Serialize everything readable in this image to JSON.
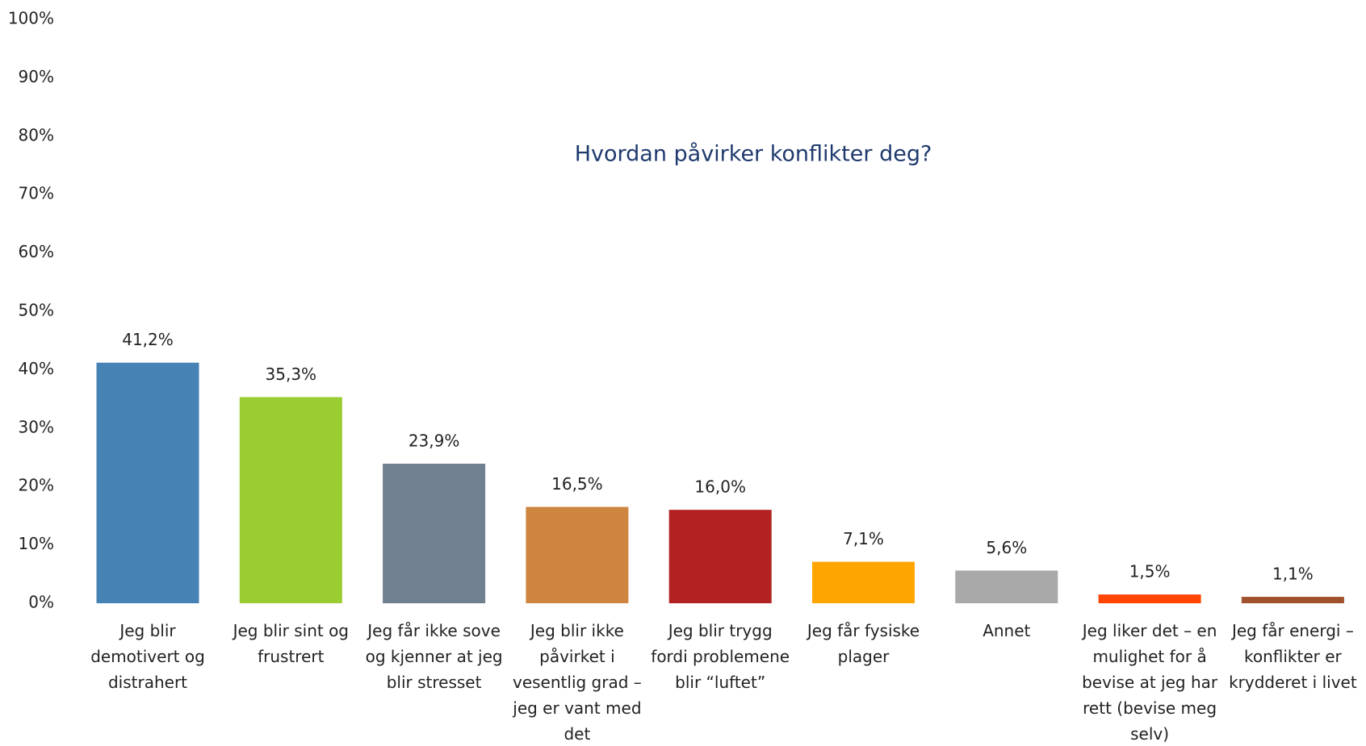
{
  "chart_data": {
    "type": "bar",
    "title": "Hvordan påvirker konflikter deg?",
    "categories": [
      "Jeg blir demotivert og distrahert",
      "Jeg blir sint og frustrert",
      "Jeg får ikke sove og kjenner at jeg blir stresset",
      "Jeg blir ikke påvirket i vesentlig grad – jeg er vant med det",
      "Jeg blir trygg fordi problemene blir “luftet”",
      "Jeg får fysiske plager",
      "Annet",
      "Jeg liker det – en mulighet for å bevise at jeg har rett (bevise meg selv)",
      "Jeg får energi – konflikter er krydderet i livet"
    ],
    "values": [
      41.2,
      35.3,
      23.9,
      16.5,
      16.0,
      7.1,
      5.6,
      1.5,
      1.1
    ],
    "value_labels": [
      "41,2%",
      "35,3%",
      "23,9%",
      "16,5%",
      "16,0%",
      "7,1%",
      "5,6%",
      "1,5%",
      "1,1%"
    ],
    "colors": [
      "#4682b4",
      "#9acd32",
      "#708090",
      "#cd853f",
      "#b22222",
      "#ffa500",
      "#a9a9a9",
      "#ff4500",
      "#a0522d"
    ],
    "ylim": [
      0,
      100
    ],
    "yticks": [
      {
        "value": 0,
        "label": "0%"
      },
      {
        "value": 10,
        "label": "10%"
      },
      {
        "value": 20,
        "label": "20%"
      },
      {
        "value": 30,
        "label": "30%"
      },
      {
        "value": 40,
        "label": "40%"
      },
      {
        "value": 50,
        "label": "50%"
      },
      {
        "value": 60,
        "label": "60%"
      },
      {
        "value": 70,
        "label": "70%"
      },
      {
        "value": 80,
        "label": "80%"
      },
      {
        "value": 90,
        "label": "90%"
      },
      {
        "value": 100,
        "label": "100%"
      }
    ],
    "grid": false
  }
}
